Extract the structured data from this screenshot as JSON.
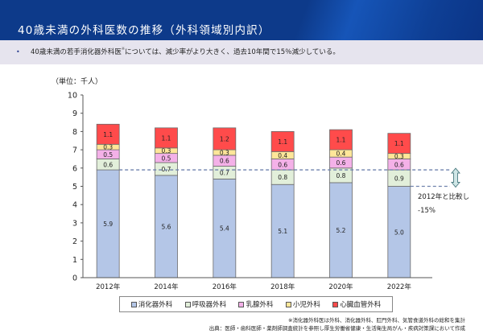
{
  "header": {
    "title": "40歳未満の外科医数の推移（外科領域別内訳）"
  },
  "summary": {
    "bullet": "•",
    "text": "40歳未満の若手消化器外科医",
    "mark": "※",
    "text2": "については、減少率がより大きく、過去10年間で15％減少している。"
  },
  "chart_data": {
    "type": "bar",
    "stacked": true,
    "unit_label": "（単位：千人）",
    "categories": [
      "2012年",
      "2014年",
      "2016年",
      "2018年",
      "2020年",
      "2022年"
    ],
    "series": [
      {
        "name": "消化器外科",
        "color": "#b4c6e7",
        "values": [
          5.9,
          5.6,
          5.4,
          5.1,
          5.2,
          5.0
        ]
      },
      {
        "name": "呼吸器外科",
        "color": "#e2efda",
        "values": [
          0.6,
          0.7,
          0.7,
          0.8,
          0.8,
          0.9
        ]
      },
      {
        "name": "乳腺外科",
        "color": "#f4b1e8",
        "values": [
          0.5,
          0.5,
          0.6,
          0.6,
          0.6,
          0.6
        ]
      },
      {
        "name": "小児外科",
        "color": "#ffe699",
        "values": [
          0.3,
          0.3,
          0.3,
          0.4,
          0.4,
          0.3
        ]
      },
      {
        "name": "心臓血管外科",
        "color": "#ff4b4b",
        "values": [
          1.1,
          1.1,
          1.2,
          1.1,
          1.1,
          1.1
        ]
      }
    ],
    "ylim": [
      0,
      10
    ],
    "yticks": [
      "0",
      "1",
      "2",
      "3",
      "4",
      "5",
      "6",
      "7",
      "8",
      "9",
      "10"
    ],
    "reference_lines": [
      5.9,
      5.0
    ],
    "annotation": {
      "line1": "2012年と比較し",
      "line2": "-15%"
    },
    "legend_position": "bottom"
  },
  "notes": {
    "line1": "※消化器外科医は外科、消化器外科、肛門外科、気管食道外科の総和を集計",
    "line2": "出典：医師・歯科医師・薬剤師調査統計を参照し厚生労働省健康・生活衛生局がん・疾病対策課において作成"
  }
}
